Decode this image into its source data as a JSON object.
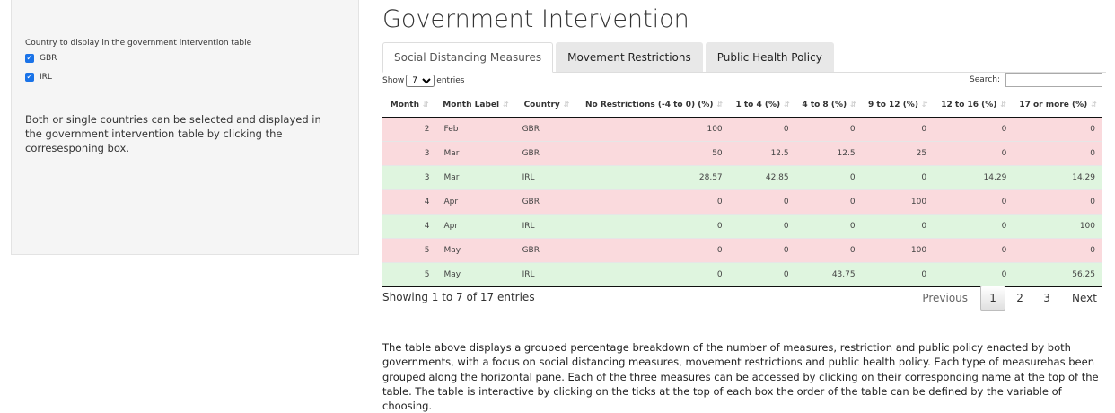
{
  "sidebar": {
    "control_label": "Country to display in the government intervention table",
    "checkboxes": [
      {
        "label": "GBR",
        "checked": true
      },
      {
        "label": "IRL",
        "checked": true
      }
    ],
    "help_text": "Both or single countries can be selected and displayed in the government intervention table by clicking the corresesponing box."
  },
  "main": {
    "title": "Government Intervention",
    "tabs": [
      {
        "label": "Social Distancing Measures",
        "active": true
      },
      {
        "label": "Movement Restrictions",
        "active": false
      },
      {
        "label": "Public Health Policy",
        "active": false
      }
    ],
    "length": {
      "show_label": "Show",
      "value": "7",
      "entries_label": "entries"
    },
    "search": {
      "label": "Search:",
      "value": ""
    },
    "table": {
      "columns": [
        "Month",
        "Month Label",
        "Country",
        "No Restrictions (-4 to 0) (%)",
        "1 to 4 (%)",
        "4 to 8 (%)",
        "9 to 12 (%)",
        "12 to 16 (%)",
        "17 or more (%)"
      ],
      "rows": [
        {
          "month": "2",
          "label": "Feb",
          "country": "GBR",
          "c1": "100",
          "c2": "0",
          "c3": "0",
          "c4": "0",
          "c5": "0",
          "c6": "0"
        },
        {
          "month": "3",
          "label": "Mar",
          "country": "GBR",
          "c1": "50",
          "c2": "12.5",
          "c3": "12.5",
          "c4": "25",
          "c5": "0",
          "c6": "0"
        },
        {
          "month": "3",
          "label": "Mar",
          "country": "IRL",
          "c1": "28.57",
          "c2": "42.85",
          "c3": "0",
          "c4": "0",
          "c5": "14.29",
          "c6": "14.29"
        },
        {
          "month": "4",
          "label": "Apr",
          "country": "GBR",
          "c1": "0",
          "c2": "0",
          "c3": "0",
          "c4": "100",
          "c5": "0",
          "c6": "0"
        },
        {
          "month": "4",
          "label": "Apr",
          "country": "IRL",
          "c1": "0",
          "c2": "0",
          "c3": "0",
          "c4": "0",
          "c5": "0",
          "c6": "100"
        },
        {
          "month": "5",
          "label": "May",
          "country": "GBR",
          "c1": "0",
          "c2": "0",
          "c3": "0",
          "c4": "100",
          "c5": "0",
          "c6": "0"
        },
        {
          "month": "5",
          "label": "May",
          "country": "IRL",
          "c1": "0",
          "c2": "0",
          "c3": "43.75",
          "c4": "0",
          "c5": "0",
          "c6": "56.25"
        }
      ]
    },
    "row_colors": {
      "GBR": "#fadadd",
      "IRL": "#dff5df"
    },
    "info": "Showing 1 to 7 of 17 entries",
    "pagination": {
      "previous": "Previous",
      "pages": [
        "1",
        "2",
        "3"
      ],
      "current": "1",
      "next": "Next"
    },
    "description": "The table above displays a grouped percentage breakdown of the number of measures, restriction and public policy enacted by both governments, with a focus on social distancing measures, movement restrictions and public health policy. Each type of measurehas been grouped along the horizontal pane. Each of the three measures can be accessed by clicking on their corresponding name at the top of the table. The table is interactive by clicking on the ticks at the top of each box the order of the table can be defined by the variable of choosing."
  }
}
